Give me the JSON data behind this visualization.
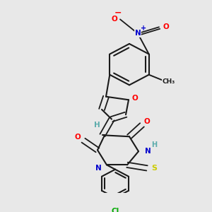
{
  "bg_color": "#e8e8e8",
  "bond_color": "#1a1a1a",
  "atom_colors": {
    "O": "#ff0000",
    "N": "#0000cc",
    "S": "#cccc00",
    "Cl": "#00aa00",
    "H": "#5aabab",
    "C": "#1a1a1a",
    "plus": "#0000cc",
    "minus": "#ff0000"
  },
  "figsize": [
    3.0,
    3.0
  ],
  "dpi": 100
}
